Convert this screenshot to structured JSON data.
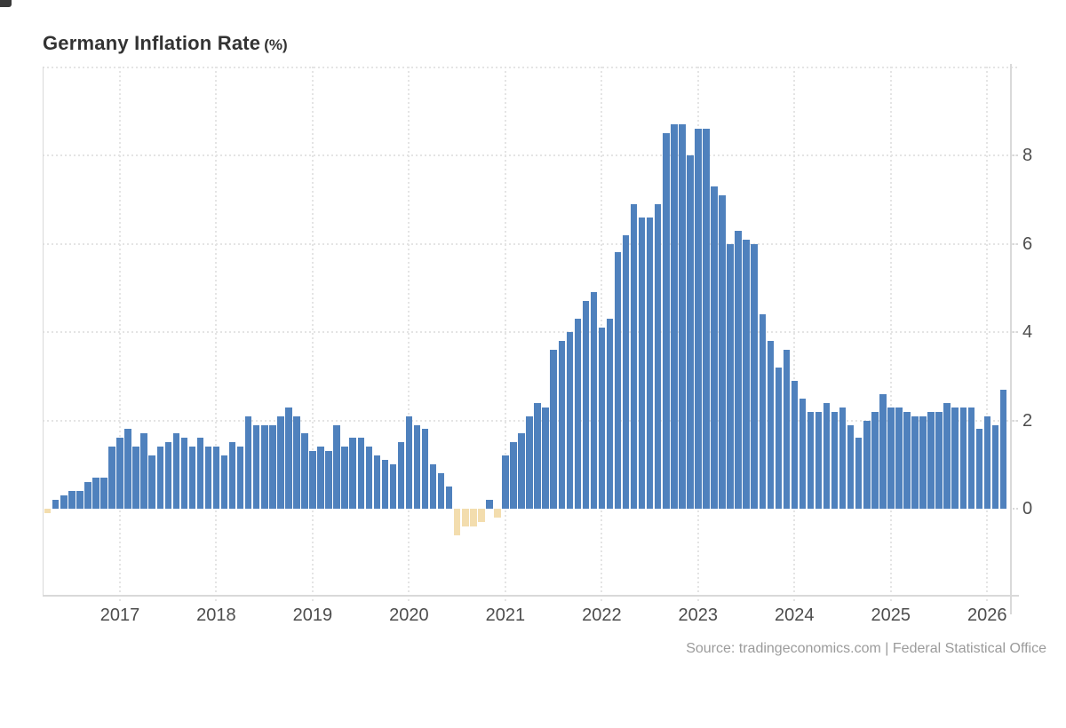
{
  "header": {
    "title": "Germany Inflation Rate",
    "title_suffix": "(%)"
  },
  "footer": {
    "source": "Source: tradingeconomics.com | Federal Statistical Office"
  },
  "chart_data": {
    "type": "bar",
    "title": "Germany Inflation Rate (%)",
    "unit": "percent",
    "frequency": "monthly",
    "start_month": "2016-04",
    "end_month": "2026-03",
    "ylim": [
      -2,
      10
    ],
    "y_tick_labels": [
      "0",
      "2",
      "4",
      "6",
      "8"
    ],
    "x_tick_labels": [
      "2017",
      "2018",
      "2019",
      "2020",
      "2021",
      "2022",
      "2023",
      "2024",
      "2025",
      "2026"
    ],
    "legend": "none",
    "grid": "dotted",
    "colors": {
      "positive_bar": "#4f81bd",
      "negative_bar": "#f3ddae"
    },
    "values": [
      -0.1,
      0.2,
      0.3,
      0.4,
      0.4,
      0.6,
      0.7,
      0.7,
      1.4,
      1.6,
      1.8,
      1.4,
      1.7,
      1.2,
      1.4,
      1.5,
      1.7,
      1.6,
      1.4,
      1.6,
      1.4,
      1.4,
      1.2,
      1.5,
      1.4,
      2.1,
      1.9,
      1.9,
      1.9,
      2.1,
      2.3,
      2.1,
      1.7,
      1.3,
      1.4,
      1.3,
      1.9,
      1.4,
      1.6,
      1.6,
      1.4,
      1.2,
      1.1,
      1.0,
      1.5,
      2.1,
      1.9,
      1.8,
      1.0,
      0.8,
      0.5,
      -0.6,
      -0.4,
      -0.4,
      -0.3,
      0.2,
      -0.2,
      1.2,
      1.5,
      1.7,
      2.1,
      2.4,
      2.3,
      3.6,
      3.8,
      4.0,
      4.3,
      4.7,
      4.9,
      4.1,
      4.3,
      5.8,
      6.2,
      6.9,
      6.6,
      6.6,
      6.9,
      8.5,
      8.7,
      8.7,
      8.0,
      8.6,
      8.6,
      7.3,
      7.1,
      6.0,
      6.3,
      6.1,
      6.0,
      4.4,
      3.8,
      3.2,
      3.6,
      2.9,
      2.5,
      2.2,
      2.2,
      2.4,
      2.2,
      2.3,
      1.9,
      1.6,
      2.0,
      2.2,
      2.6,
      2.3,
      2.3,
      2.2,
      2.1,
      2.1,
      2.2,
      2.2,
      2.4,
      2.3,
      2.3,
      2.3,
      1.8,
      2.1,
      1.9,
      2.7
    ]
  }
}
